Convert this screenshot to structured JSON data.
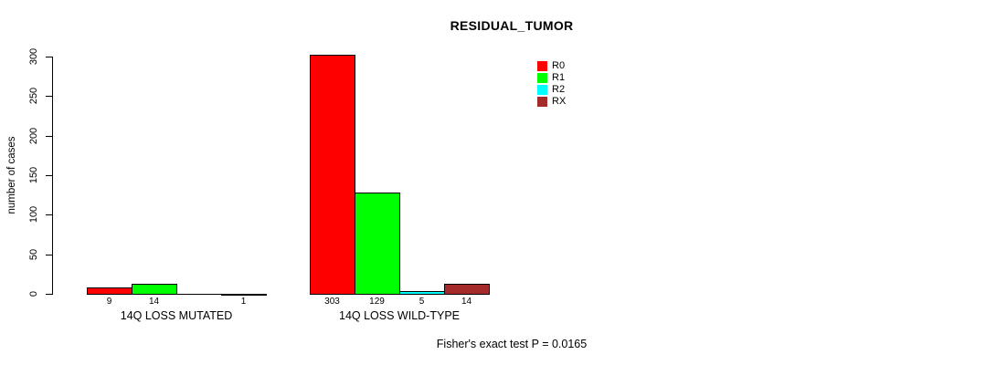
{
  "chart_data": {
    "type": "bar",
    "title": "RESIDUAL_TUMOR",
    "xlabel": "",
    "ylabel": "number of cases",
    "ylim": [
      0,
      300
    ],
    "yticks": [
      0,
      50,
      100,
      150,
      200,
      250,
      300
    ],
    "grid": false,
    "legend_position": "top-right",
    "categories": [
      "14Q LOSS MUTATED",
      "14Q LOSS WILD-TYPE"
    ],
    "series": [
      {
        "name": "R0",
        "color": "#FF0000",
        "values": [
          9,
          303
        ]
      },
      {
        "name": "R1",
        "color": "#00FF00",
        "values": [
          14,
          129
        ]
      },
      {
        "name": "R2",
        "color": "#00FFFF",
        "values": [
          0,
          5
        ]
      },
      {
        "name": "RX",
        "color": "#A52A2A",
        "values": [
          1,
          14
        ]
      }
    ],
    "bar_value_labels": [
      [
        "9",
        "14",
        "",
        "1"
      ],
      [
        "303",
        "129",
        "5",
        "14"
      ]
    ],
    "annotation": "Fisher's exact test P = 0.0165",
    "axis_color": "#000000",
    "background_color": "#FFFFFF"
  }
}
